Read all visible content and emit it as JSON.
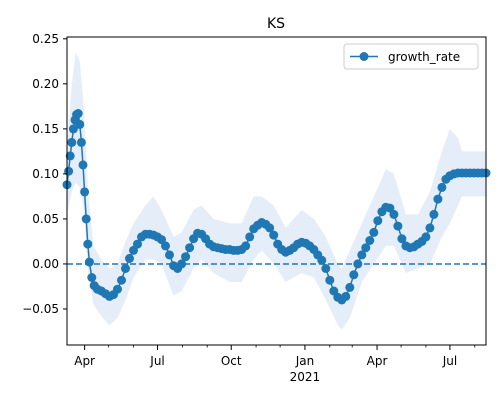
{
  "chart_data": {
    "type": "line",
    "title": "KS",
    "xlabel": "",
    "ylabel": "",
    "x_tick_labels": [
      "Apr",
      "Jul",
      "Oct",
      "Jan",
      "Apr",
      "Jul"
    ],
    "x_tick_dates": [
      "2020-04-01",
      "2020-07-01",
      "2020-10-01",
      "2021-01-01",
      "2021-04-01",
      "2021-07-01"
    ],
    "x_secondary_label": "2021",
    "xlim": [
      "2020-03-10",
      "2021-08-15"
    ],
    "y_ticks": [
      -0.05,
      0.0,
      0.05,
      0.1,
      0.15,
      0.2,
      0.25
    ],
    "y_tick_labels": [
      "−0.05",
      "0.00",
      "0.05",
      "0.10",
      "0.15",
      "0.20",
      "0.25"
    ],
    "ylim": [
      -0.09,
      0.252
    ],
    "legend": {
      "position": "upper-right",
      "entries": [
        "growth_rate"
      ]
    },
    "reference_line": {
      "y": 0.0,
      "style": "dashed"
    },
    "series": [
      {
        "name": "growth_rate",
        "color": "#1f77b4",
        "band_color": "#dce8f5",
        "marker": "circle",
        "points": [
          [
            "2020-03-10",
            0.088
          ],
          [
            "2020-03-12",
            0.103
          ],
          [
            "2020-03-14",
            0.12
          ],
          [
            "2020-03-16",
            0.135
          ],
          [
            "2020-03-18",
            0.15
          ],
          [
            "2020-03-20",
            0.16
          ],
          [
            "2020-03-22",
            0.166
          ],
          [
            "2020-03-24",
            0.167
          ],
          [
            "2020-03-26",
            0.155
          ],
          [
            "2020-03-28",
            0.135
          ],
          [
            "2020-03-30",
            0.11
          ],
          [
            "2020-04-01",
            0.08
          ],
          [
            "2020-04-03",
            0.05
          ],
          [
            "2020-04-05",
            0.022
          ],
          [
            "2020-04-07",
            0.002
          ],
          [
            "2020-04-10",
            -0.015
          ],
          [
            "2020-04-13",
            -0.024
          ],
          [
            "2020-04-17",
            -0.028
          ],
          [
            "2020-04-22",
            -0.03
          ],
          [
            "2020-04-27",
            -0.033
          ],
          [
            "2020-05-02",
            -0.036
          ],
          [
            "2020-05-07",
            -0.034
          ],
          [
            "2020-05-12",
            -0.028
          ],
          [
            "2020-05-17",
            -0.018
          ],
          [
            "2020-05-22",
            -0.005
          ],
          [
            "2020-05-27",
            0.006
          ],
          [
            "2020-06-01",
            0.015
          ],
          [
            "2020-06-06",
            0.022
          ],
          [
            "2020-06-11",
            0.03
          ],
          [
            "2020-06-16",
            0.033
          ],
          [
            "2020-06-21",
            0.033
          ],
          [
            "2020-06-26",
            0.032
          ],
          [
            "2020-07-01",
            0.03
          ],
          [
            "2020-07-06",
            0.027
          ],
          [
            "2020-07-11",
            0.02
          ],
          [
            "2020-07-16",
            0.01
          ],
          [
            "2020-07-21",
            -0.002
          ],
          [
            "2020-07-26",
            -0.005
          ],
          [
            "2020-07-31",
            0.0
          ],
          [
            "2020-08-05",
            0.008
          ],
          [
            "2020-08-10",
            0.018
          ],
          [
            "2020-08-15",
            0.028
          ],
          [
            "2020-08-20",
            0.034
          ],
          [
            "2020-08-25",
            0.033
          ],
          [
            "2020-08-30",
            0.028
          ],
          [
            "2020-09-04",
            0.022
          ],
          [
            "2020-09-09",
            0.019
          ],
          [
            "2020-09-14",
            0.018
          ],
          [
            "2020-09-19",
            0.017
          ],
          [
            "2020-09-24",
            0.016
          ],
          [
            "2020-09-29",
            0.016
          ],
          [
            "2020-10-04",
            0.015
          ],
          [
            "2020-10-09",
            0.015
          ],
          [
            "2020-10-14",
            0.016
          ],
          [
            "2020-10-19",
            0.02
          ],
          [
            "2020-10-24",
            0.03
          ],
          [
            "2020-10-29",
            0.039
          ],
          [
            "2020-11-03",
            0.043
          ],
          [
            "2020-11-08",
            0.046
          ],
          [
            "2020-11-13",
            0.044
          ],
          [
            "2020-11-18",
            0.04
          ],
          [
            "2020-11-23",
            0.032
          ],
          [
            "2020-11-28",
            0.022
          ],
          [
            "2020-12-03",
            0.016
          ],
          [
            "2020-12-08",
            0.013
          ],
          [
            "2020-12-13",
            0.015
          ],
          [
            "2020-12-18",
            0.018
          ],
          [
            "2020-12-23",
            0.022
          ],
          [
            "2020-12-28",
            0.024
          ],
          [
            "2021-01-02",
            0.023
          ],
          [
            "2021-01-07",
            0.02
          ],
          [
            "2021-01-12",
            0.016
          ],
          [
            "2021-01-17",
            0.01
          ],
          [
            "2021-01-22",
            0.004
          ],
          [
            "2021-01-27",
            -0.005
          ],
          [
            "2021-02-01",
            -0.018
          ],
          [
            "2021-02-06",
            -0.03
          ],
          [
            "2021-02-11",
            -0.037
          ],
          [
            "2021-02-16",
            -0.04
          ],
          [
            "2021-02-21",
            -0.036
          ],
          [
            "2021-02-26",
            -0.026
          ],
          [
            "2021-03-03",
            -0.012
          ],
          [
            "2021-03-08",
            0.0
          ],
          [
            "2021-03-13",
            0.01
          ],
          [
            "2021-03-18",
            0.018
          ],
          [
            "2021-03-23",
            0.026
          ],
          [
            "2021-03-28",
            0.035
          ],
          [
            "2021-04-02",
            0.048
          ],
          [
            "2021-04-07",
            0.058
          ],
          [
            "2021-04-12",
            0.063
          ],
          [
            "2021-04-17",
            0.062
          ],
          [
            "2021-04-22",
            0.055
          ],
          [
            "2021-04-27",
            0.042
          ],
          [
            "2021-05-02",
            0.028
          ],
          [
            "2021-05-07",
            0.02
          ],
          [
            "2021-05-12",
            0.018
          ],
          [
            "2021-05-17",
            0.019
          ],
          [
            "2021-05-22",
            0.022
          ],
          [
            "2021-05-27",
            0.025
          ],
          [
            "2021-06-01",
            0.03
          ],
          [
            "2021-06-06",
            0.04
          ],
          [
            "2021-06-11",
            0.055
          ],
          [
            "2021-06-16",
            0.072
          ],
          [
            "2021-06-21",
            0.085
          ],
          [
            "2021-06-26",
            0.094
          ],
          [
            "2021-07-01",
            0.098
          ],
          [
            "2021-07-06",
            0.1
          ],
          [
            "2021-07-11",
            0.101
          ],
          [
            "2021-07-16",
            0.101
          ],
          [
            "2021-07-21",
            0.101
          ],
          [
            "2021-07-26",
            0.101
          ],
          [
            "2021-07-31",
            0.101
          ],
          [
            "2021-08-05",
            0.101
          ],
          [
            "2021-08-10",
            0.101
          ],
          [
            "2021-08-15",
            0.101
          ]
        ],
        "band": [
          [
            "2020-03-10",
            0.055,
            0.13
          ],
          [
            "2020-03-16",
            0.08,
            0.2
          ],
          [
            "2020-03-21",
            0.09,
            0.235
          ],
          [
            "2020-03-26",
            0.085,
            0.225
          ],
          [
            "2020-03-31",
            0.06,
            0.175
          ],
          [
            "2020-04-05",
            -0.005,
            0.085
          ],
          [
            "2020-04-12",
            -0.045,
            0.02
          ],
          [
            "2020-04-22",
            -0.058,
            0.005
          ],
          [
            "2020-05-02",
            -0.068,
            -0.005
          ],
          [
            "2020-05-12",
            -0.06,
            0.0
          ],
          [
            "2020-05-22",
            -0.04,
            0.025
          ],
          [
            "2020-06-01",
            -0.015,
            0.045
          ],
          [
            "2020-06-16",
            0.005,
            0.065
          ],
          [
            "2020-06-26",
            0.005,
            0.075
          ],
          [
            "2020-07-06",
            0.0,
            0.06
          ],
          [
            "2020-07-21",
            -0.035,
            0.03
          ],
          [
            "2020-07-31",
            -0.03,
            0.035
          ],
          [
            "2020-08-15",
            -0.005,
            0.06
          ],
          [
            "2020-08-25",
            0.005,
            0.065
          ],
          [
            "2020-09-09",
            -0.01,
            0.05
          ],
          [
            "2020-09-29",
            -0.02,
            0.045
          ],
          [
            "2020-10-14",
            -0.02,
            0.045
          ],
          [
            "2020-10-29",
            0.005,
            0.075
          ],
          [
            "2020-11-08",
            0.015,
            0.075
          ],
          [
            "2020-11-23",
            0.0,
            0.065
          ],
          [
            "2020-12-08",
            -0.02,
            0.04
          ],
          [
            "2020-12-28",
            -0.01,
            0.06
          ],
          [
            "2021-01-12",
            -0.015,
            0.05
          ],
          [
            "2021-01-27",
            -0.04,
            0.03
          ],
          [
            "2021-02-11",
            -0.068,
            0.0
          ],
          [
            "2021-02-16",
            -0.073,
            -0.005
          ],
          [
            "2021-02-26",
            -0.06,
            0.015
          ],
          [
            "2021-03-13",
            -0.02,
            0.045
          ],
          [
            "2021-03-28",
            0.0,
            0.075
          ],
          [
            "2021-04-12",
            0.02,
            0.105
          ],
          [
            "2021-04-22",
            0.02,
            0.1
          ],
          [
            "2021-05-07",
            -0.01,
            0.055
          ],
          [
            "2021-05-22",
            -0.005,
            0.055
          ],
          [
            "2021-06-06",
            0.0,
            0.08
          ],
          [
            "2021-06-21",
            0.03,
            0.125
          ],
          [
            "2021-07-01",
            0.045,
            0.15
          ],
          [
            "2021-07-11",
            0.065,
            0.14
          ],
          [
            "2021-07-16",
            0.075,
            0.125
          ],
          [
            "2021-08-15",
            0.075,
            0.125
          ]
        ]
      }
    ]
  }
}
